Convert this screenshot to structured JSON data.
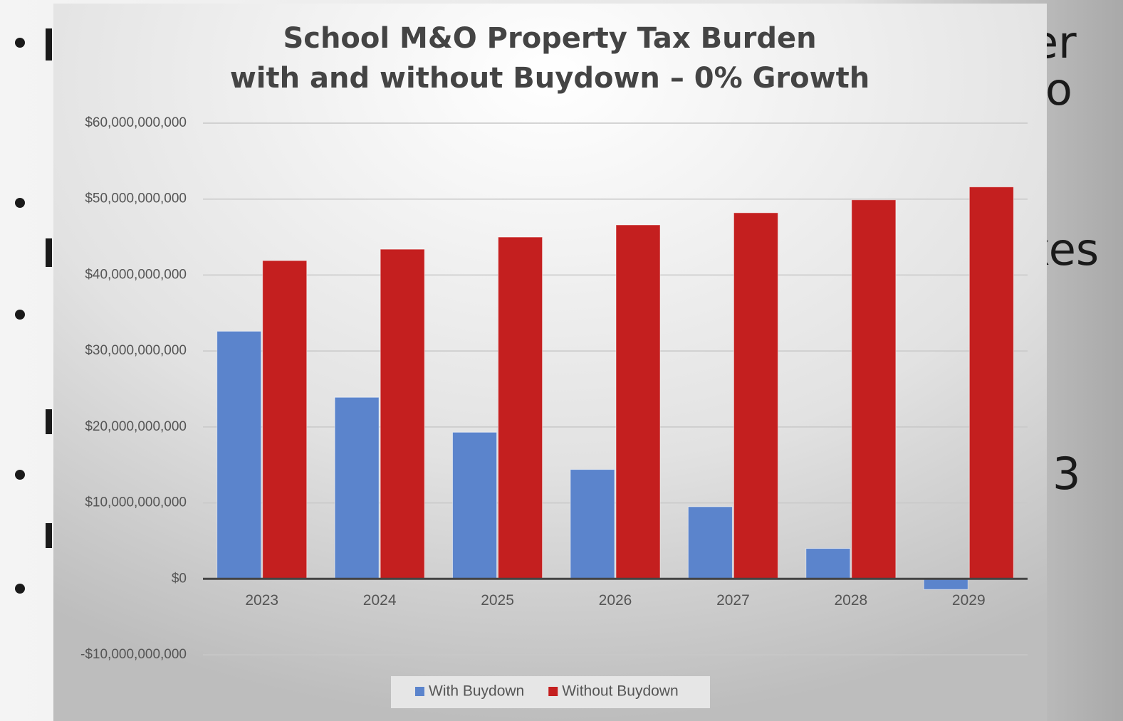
{
  "slide": {
    "fragments": [
      {
        "text": "er",
        "x": 1448,
        "y": 64
      },
      {
        "text": "o",
        "x": 1468,
        "y": 130
      },
      {
        "text": "xes",
        "x": 1438,
        "y": 355
      },
      {
        "text": "3",
        "x": 1478,
        "y": 670
      }
    ]
  },
  "chart_data": {
    "type": "bar",
    "title": [
      "School M&O Property Tax Burden",
      "with and without Buydown – 0% Growth"
    ],
    "categories": [
      "2023",
      "2024",
      "2025",
      "2026",
      "2027",
      "2028",
      "2029"
    ],
    "series": [
      {
        "name": "With Buydown",
        "color": "#5b84cc",
        "values": [
          32600000000,
          23900000000,
          19300000000,
          14400000000,
          9500000000,
          4000000000,
          -1400000000
        ]
      },
      {
        "name": "Without Buydown",
        "color": "#c41f1f",
        "values": [
          41900000000,
          43400000000,
          45000000000,
          46600000000,
          48200000000,
          49900000000,
          51600000000
        ]
      }
    ],
    "ylim": [
      -10000000000,
      60000000000
    ],
    "yticks": [
      {
        "value": -10000000000,
        "label": "-$10,000,000,000"
      },
      {
        "value": 0,
        "label": "$0"
      },
      {
        "value": 10000000000,
        "label": "$10,000,000,000"
      },
      {
        "value": 20000000000,
        "label": "$20,000,000,000"
      },
      {
        "value": 30000000000,
        "label": "$30,000,000,000"
      },
      {
        "value": 40000000000,
        "label": "$40,000,000,000"
      },
      {
        "value": 50000000000,
        "label": "$50,000,000,000"
      },
      {
        "value": 60000000000,
        "label": "$60,000,000,000"
      }
    ],
    "grid": true,
    "legend": "bottom"
  }
}
